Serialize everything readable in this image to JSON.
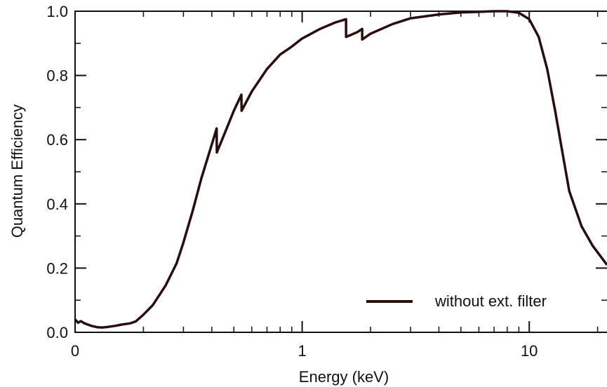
{
  "chart_data": {
    "type": "line",
    "title": "",
    "xlabel": "Energy (keV)",
    "ylabel": "Quantum Efficiency",
    "x_scale": "log",
    "xlim": [
      0.1,
      22
    ],
    "ylim": [
      0.0,
      1.0
    ],
    "grid": false,
    "legend_position": "bottom-right",
    "x_ticks": [
      {
        "value": 0.1,
        "label": "0"
      },
      {
        "value": 1,
        "label": "1"
      },
      {
        "value": 10,
        "label": "10"
      }
    ],
    "y_ticks": [
      {
        "value": 0.0,
        "label": "0.0"
      },
      {
        "value": 0.2,
        "label": "0.2"
      },
      {
        "value": 0.4,
        "label": "0.4"
      },
      {
        "value": 0.6,
        "label": "0.6"
      },
      {
        "value": 0.8,
        "label": "0.8"
      },
      {
        "value": 1.0,
        "label": "1.0"
      }
    ],
    "series": [
      {
        "name": "without ext. filter",
        "color": "#2a0d0d",
        "points": [
          [
            0.1,
            0.04
          ],
          [
            0.103,
            0.03
          ],
          [
            0.106,
            0.035
          ],
          [
            0.11,
            0.028
          ],
          [
            0.118,
            0.02
          ],
          [
            0.125,
            0.016
          ],
          [
            0.132,
            0.015
          ],
          [
            0.14,
            0.017
          ],
          [
            0.15,
            0.02
          ],
          [
            0.16,
            0.024
          ],
          [
            0.175,
            0.028
          ],
          [
            0.185,
            0.034
          ],
          [
            0.2,
            0.055
          ],
          [
            0.22,
            0.085
          ],
          [
            0.25,
            0.145
          ],
          [
            0.28,
            0.215
          ],
          [
            0.3,
            0.28
          ],
          [
            0.33,
            0.38
          ],
          [
            0.36,
            0.48
          ],
          [
            0.39,
            0.56
          ],
          [
            0.41,
            0.61
          ],
          [
            0.42,
            0.635
          ],
          [
            0.421,
            0.56
          ],
          [
            0.45,
            0.61
          ],
          [
            0.5,
            0.69
          ],
          [
            0.54,
            0.74
          ],
          [
            0.541,
            0.69
          ],
          [
            0.6,
            0.75
          ],
          [
            0.7,
            0.82
          ],
          [
            0.8,
            0.865
          ],
          [
            0.9,
            0.89
          ],
          [
            1.0,
            0.915
          ],
          [
            1.2,
            0.945
          ],
          [
            1.4,
            0.965
          ],
          [
            1.56,
            0.975
          ],
          [
            1.561,
            0.92
          ],
          [
            1.65,
            0.927
          ],
          [
            1.75,
            0.935
          ],
          [
            1.838,
            0.945
          ],
          [
            1.839,
            0.912
          ],
          [
            2.0,
            0.93
          ],
          [
            2.5,
            0.96
          ],
          [
            3.0,
            0.978
          ],
          [
            4.0,
            0.99
          ],
          [
            5.0,
            0.996
          ],
          [
            6.0,
            0.998
          ],
          [
            7.0,
            1.0
          ],
          [
            8.0,
            1.0
          ],
          [
            9.0,
            0.995
          ],
          [
            10.0,
            0.975
          ],
          [
            11.0,
            0.92
          ],
          [
            12.0,
            0.82
          ],
          [
            13.0,
            0.69
          ],
          [
            14.0,
            0.56
          ],
          [
            15.0,
            0.44
          ],
          [
            17.0,
            0.33
          ],
          [
            19.0,
            0.27
          ],
          [
            22.0,
            0.21
          ]
        ]
      }
    ]
  }
}
